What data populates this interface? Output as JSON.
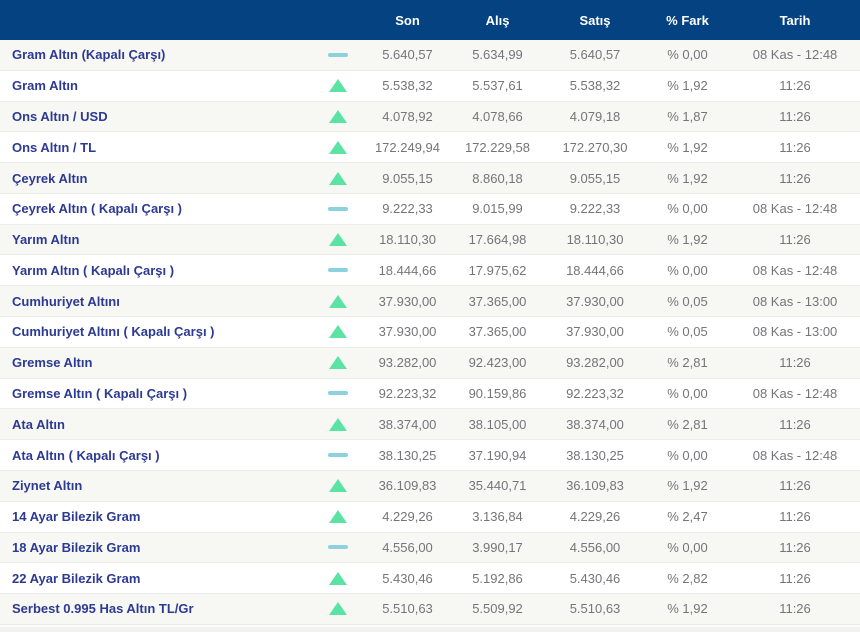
{
  "table": {
    "columns": {
      "son": "Son",
      "alis": "Alış",
      "satis": "Satış",
      "fark": "% Fark",
      "tarih": "Tarih"
    },
    "rows": [
      {
        "name": "Gram Altın (Kapalı Çarşı)",
        "trend": "flat",
        "son": "5.640,57",
        "alis": "5.634,99",
        "satis": "5.640,57",
        "fark": "% 0,00",
        "tarih": "08 Kas - 12:48"
      },
      {
        "name": "Gram Altın",
        "trend": "up",
        "son": "5.538,32",
        "alis": "5.537,61",
        "satis": "5.538,32",
        "fark": "% 1,92",
        "tarih": "11:26"
      },
      {
        "name": "Ons Altın / USD",
        "trend": "up",
        "son": "4.078,92",
        "alis": "4.078,66",
        "satis": "4.079,18",
        "fark": "% 1,87",
        "tarih": "11:26"
      },
      {
        "name": "Ons Altın / TL",
        "trend": "up",
        "son": "172.249,94",
        "alis": "172.229,58",
        "satis": "172.270,30",
        "fark": "% 1,92",
        "tarih": "11:26"
      },
      {
        "name": "Çeyrek Altın",
        "trend": "up",
        "son": "9.055,15",
        "alis": "8.860,18",
        "satis": "9.055,15",
        "fark": "% 1,92",
        "tarih": "11:26"
      },
      {
        "name": "Çeyrek Altın ( Kapalı Çarşı )",
        "trend": "flat",
        "son": "9.222,33",
        "alis": "9.015,99",
        "satis": "9.222,33",
        "fark": "% 0,00",
        "tarih": "08 Kas - 12:48"
      },
      {
        "name": "Yarım Altın",
        "trend": "up",
        "son": "18.110,30",
        "alis": "17.664,98",
        "satis": "18.110,30",
        "fark": "% 1,92",
        "tarih": "11:26"
      },
      {
        "name": "Yarım Altın ( Kapalı Çarşı )",
        "trend": "flat",
        "son": "18.444,66",
        "alis": "17.975,62",
        "satis": "18.444,66",
        "fark": "% 0,00",
        "tarih": "08 Kas - 12:48"
      },
      {
        "name": "Cumhuriyet Altını",
        "trend": "up",
        "son": "37.930,00",
        "alis": "37.365,00",
        "satis": "37.930,00",
        "fark": "% 0,05",
        "tarih": "08 Kas - 13:00"
      },
      {
        "name": "Cumhuriyet Altını ( Kapalı Çarşı )",
        "trend": "up",
        "son": "37.930,00",
        "alis": "37.365,00",
        "satis": "37.930,00",
        "fark": "% 0,05",
        "tarih": "08 Kas - 13:00"
      },
      {
        "name": "Gremse Altın",
        "trend": "up",
        "son": "93.282,00",
        "alis": "92.423,00",
        "satis": "93.282,00",
        "fark": "% 2,81",
        "tarih": "11:26"
      },
      {
        "name": "Gremse Altın ( Kapalı Çarşı )",
        "trend": "flat",
        "son": "92.223,32",
        "alis": "90.159,86",
        "satis": "92.223,32",
        "fark": "% 0,00",
        "tarih": "08 Kas - 12:48"
      },
      {
        "name": "Ata Altın",
        "trend": "up",
        "son": "38.374,00",
        "alis": "38.105,00",
        "satis": "38.374,00",
        "fark": "% 2,81",
        "tarih": "11:26"
      },
      {
        "name": "Ata Altın ( Kapalı Çarşı )",
        "trend": "flat",
        "son": "38.130,25",
        "alis": "37.190,94",
        "satis": "38.130,25",
        "fark": "% 0,00",
        "tarih": "08 Kas - 12:48"
      },
      {
        "name": "Ziynet Altın",
        "trend": "up",
        "son": "36.109,83",
        "alis": "35.440,71",
        "satis": "36.109,83",
        "fark": "% 1,92",
        "tarih": "11:26"
      },
      {
        "name": "14 Ayar Bilezik Gram",
        "trend": "up",
        "son": "4.229,26",
        "alis": "3.136,84",
        "satis": "4.229,26",
        "fark": "% 2,47",
        "tarih": "11:26"
      },
      {
        "name": "18 Ayar Bilezik Gram",
        "trend": "flat",
        "son": "4.556,00",
        "alis": "3.990,17",
        "satis": "4.556,00",
        "fark": "% 0,00",
        "tarih": "11:26"
      },
      {
        "name": "22 Ayar Bilezik Gram",
        "trend": "up",
        "son": "5.430,46",
        "alis": "5.192,86",
        "satis": "5.430,46",
        "fark": "% 2,82",
        "tarih": "11:26"
      },
      {
        "name": "Serbest 0.995 Has Altın TL/Gr",
        "trend": "up",
        "son": "5.510,63",
        "alis": "5.509,92",
        "satis": "5.510,63",
        "fark": "% 1,92",
        "tarih": "11:26"
      }
    ]
  },
  "icons": {
    "trend_up": "triangle-up",
    "trend_flat": "dash"
  },
  "colors": {
    "header_bg": "#044281",
    "header_text": "#ffffff",
    "row_label": "#2c3a94",
    "value_text": "#74757a",
    "trend_up": "#5be3a3",
    "trend_flat": "#8ed1de",
    "row_alt_bg": "#f7f7f4",
    "row_bg": "#ffffff",
    "separator": "#ebebe9"
  }
}
